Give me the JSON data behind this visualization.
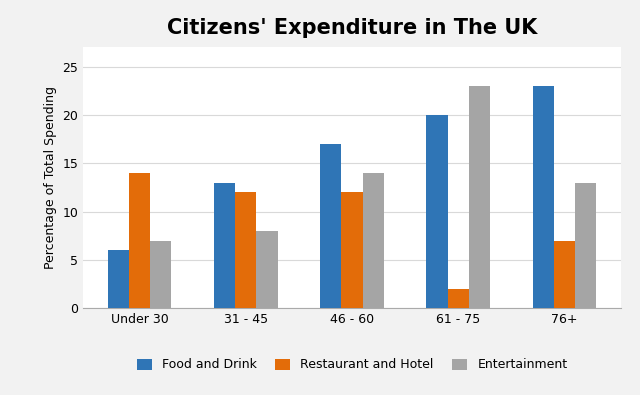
{
  "title": "Citizens' Expenditure in The UK",
  "ylabel": "Percentage of Total Spending",
  "categories": [
    "Under 30",
    "31 - 45",
    "46 - 60",
    "61 - 75",
    "76+"
  ],
  "series": {
    "Food and Drink": [
      6,
      13,
      17,
      20,
      23
    ],
    "Restaurant and Hotel": [
      14,
      12,
      12,
      2,
      7
    ],
    "Entertainment": [
      7,
      8,
      14,
      23,
      13
    ]
  },
  "colors": {
    "Food and Drink": "#2F75B6",
    "Restaurant and Hotel": "#E36C09",
    "Entertainment": "#A5A5A5"
  },
  "ylim": [
    0,
    27
  ],
  "yticks": [
    0,
    5,
    10,
    15,
    20,
    25
  ],
  "legend_labels": [
    "Food and Drink",
    "Restaurant and Hotel",
    "Entertainment"
  ],
  "bar_width": 0.2,
  "outer_bg": "#F2F2F2",
  "plot_bg": "#FFFFFF",
  "grid_color": "#D9D9D9",
  "title_fontsize": 15,
  "axis_fontsize": 9,
  "legend_fontsize": 9
}
